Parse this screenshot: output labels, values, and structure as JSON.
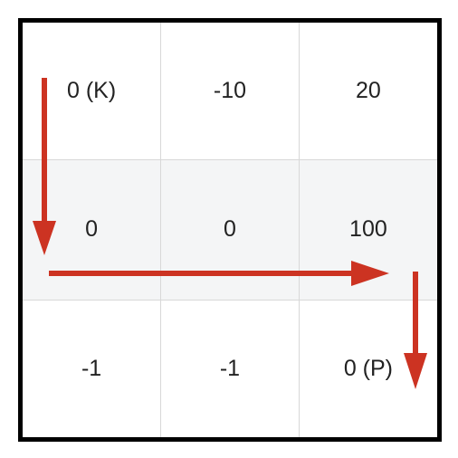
{
  "grid": {
    "rows": [
      [
        "0 (K)",
        "-10",
        "20"
      ],
      [
        "0",
        "0",
        "100"
      ],
      [
        "-1",
        "-1",
        "0 (P)"
      ]
    ],
    "shaded_row_index": 1
  },
  "colors": {
    "frame": "#000000",
    "arrow": "#cc3322",
    "cell_border": "#d8d8d8",
    "shaded_row": "#f4f5f6"
  },
  "path_arrows": [
    {
      "direction": "down"
    },
    {
      "direction": "right"
    },
    {
      "direction": "down"
    }
  ]
}
